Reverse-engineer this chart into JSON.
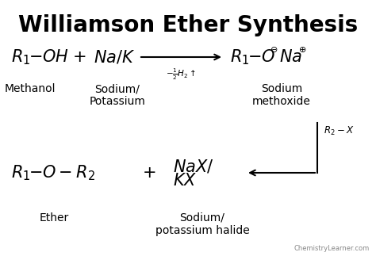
{
  "title": "Williamson Ether Synthesis",
  "background_color": "#ffffff",
  "text_color": "#000000",
  "title_fontsize": 20,
  "title_fontweight": "bold",
  "formula_fontsize": 15,
  "label_fontsize": 10,
  "small_fontsize": 7.5,
  "watermark": "ChemistryLearner.com",
  "watermark_fontsize": 6,
  "row1": {
    "label1": "Methanol",
    "label2": "Sodium/\nPotassium",
    "label3": "Sodium\nmethoxide"
  },
  "row2": {
    "label4": "Ether",
    "label5": "Sodium/\npotassium halide"
  }
}
